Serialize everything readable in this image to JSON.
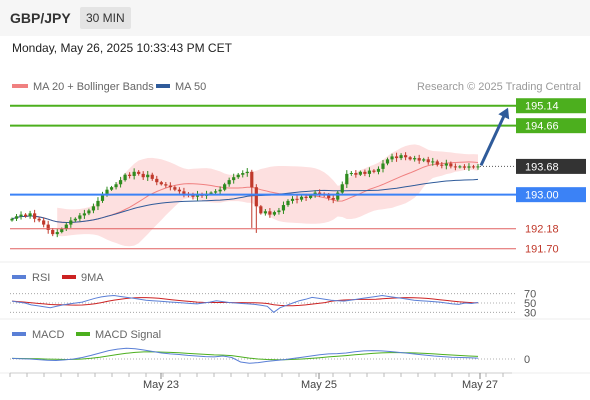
{
  "header": {
    "pair": "GBP/JPY",
    "timeframe": "30 MIN",
    "datetime": "Monday, May 26, 2025 10:33:43 PM CET"
  },
  "colors": {
    "ma20": "#f08080",
    "ma50": "#2f5b9a",
    "bollinger_fill": "#fde0e0",
    "candle_up": "#2e8b1e",
    "candle_down": "#c0392b",
    "resistance": "#4caf1e",
    "pivot": "#3b82f6",
    "support": "#e06060",
    "current": "#333333",
    "arrow": "#2f5b9a",
    "rsi": "#5a7fd6",
    "rsi_ma": "#cc2222",
    "macd": "#5a7fd6",
    "macd_signal": "#4caf1e"
  },
  "chart_data": [
    {
      "type": "candlestick",
      "legend": [
        {
          "label": "MA 20 + Bollinger Bands",
          "color": "#f08080"
        },
        {
          "label": "MA 50",
          "color": "#2f5b9a"
        }
      ],
      "watermark": "Research © 2025 Trading Central",
      "ylim": [
        191.5,
        195.35
      ],
      "x_ticks": [
        "May 23",
        "May 25",
        "May 27"
      ],
      "levels": [
        {
          "value": 195.14,
          "label": "195.14",
          "kind": "resistance"
        },
        {
          "value": 194.66,
          "label": "194.66",
          "kind": "resistance"
        },
        {
          "value": 193.68,
          "label": "193.68",
          "kind": "current"
        },
        {
          "value": 193.0,
          "label": "193.00",
          "kind": "pivot"
        },
        {
          "value": 192.18,
          "label": "192.18",
          "kind": "support"
        },
        {
          "value": 191.7,
          "label": "191.70",
          "kind": "support"
        }
      ],
      "projection": {
        "from": 193.68,
        "to": 195.14
      },
      "close_series": [
        192.42,
        192.48,
        192.52,
        192.48,
        192.55,
        192.42,
        192.38,
        192.28,
        192.15,
        192.05,
        192.1,
        192.18,
        192.28,
        192.38,
        192.42,
        192.5,
        192.55,
        192.62,
        192.72,
        192.85,
        193.02,
        193.12,
        193.18,
        193.25,
        193.35,
        193.48,
        193.45,
        193.55,
        193.5,
        193.42,
        193.48,
        193.38,
        193.3,
        193.25,
        193.22,
        193.18,
        193.12,
        193.08,
        193.02,
        192.98,
        192.95,
        193.0,
        192.97,
        193.02,
        193.05,
        193.08,
        193.12,
        193.25,
        193.35,
        193.42,
        193.48,
        193.52,
        193.55,
        193.18,
        192.72,
        192.55,
        192.6,
        192.52,
        192.58,
        192.62,
        192.75,
        192.85,
        192.9,
        192.88,
        192.95,
        192.92,
        192.98,
        193.05,
        193.02,
        192.98,
        192.92,
        192.88,
        193.05,
        193.25,
        193.5,
        193.52,
        193.48,
        193.55,
        193.5,
        193.58,
        193.55,
        193.62,
        193.75,
        193.85,
        193.92,
        193.88,
        193.95,
        193.9,
        193.85,
        193.88,
        193.82,
        193.85,
        193.78,
        193.8,
        193.72,
        193.7,
        193.75,
        193.68,
        193.66,
        193.68,
        193.65,
        193.68,
        193.66,
        193.68
      ]
    },
    {
      "type": "line",
      "legend": [
        {
          "label": "RSI",
          "color": "#5a7fd6"
        },
        {
          "label": "9MA",
          "color": "#cc2222"
        }
      ],
      "ylim": [
        20,
        80
      ],
      "y_ticks": [
        70,
        50,
        30
      ],
      "rsi": [
        54,
        52,
        50,
        46,
        44,
        42,
        40,
        43,
        46,
        48,
        50,
        52,
        56,
        60,
        63,
        65,
        66,
        64,
        62,
        60,
        58,
        56,
        55,
        54,
        53,
        52,
        51,
        50,
        49,
        48,
        50,
        52,
        55,
        53,
        51,
        50,
        49,
        48,
        47,
        45,
        43,
        30,
        40,
        45,
        50,
        55,
        58,
        62,
        60,
        58,
        56,
        55,
        54,
        56,
        58,
        60,
        62,
        64,
        66,
        64,
        62,
        60,
        58,
        56,
        55,
        54,
        53,
        52,
        50,
        48,
        47,
        50,
        49,
        51
      ]
    },
    {
      "type": "line",
      "legend": [
        {
          "label": "MACD",
          "color": "#5a7fd6"
        },
        {
          "label": "MACD Signal",
          "color": "#4caf1e"
        }
      ],
      "y_ticks": [
        0
      ],
      "macd": [
        0.02,
        0.01,
        0.0,
        -0.02,
        -0.04,
        -0.05,
        -0.03,
        0.0,
        0.05,
        0.12,
        0.2,
        0.28,
        0.33,
        0.36,
        0.34,
        0.3,
        0.25,
        0.2,
        0.17,
        0.15,
        0.12,
        0.1,
        0.08,
        0.07,
        0.1,
        0.05,
        -0.1,
        -0.14,
        -0.12,
        -0.08,
        -0.05,
        -0.02,
        0.02,
        0.06,
        0.1,
        0.14,
        0.17,
        0.18,
        0.2,
        0.24,
        0.27,
        0.28,
        0.27,
        0.25,
        0.22,
        0.19,
        0.16,
        0.13,
        0.1,
        0.08,
        0.06,
        0.05,
        0.04,
        0.03
      ]
    }
  ]
}
